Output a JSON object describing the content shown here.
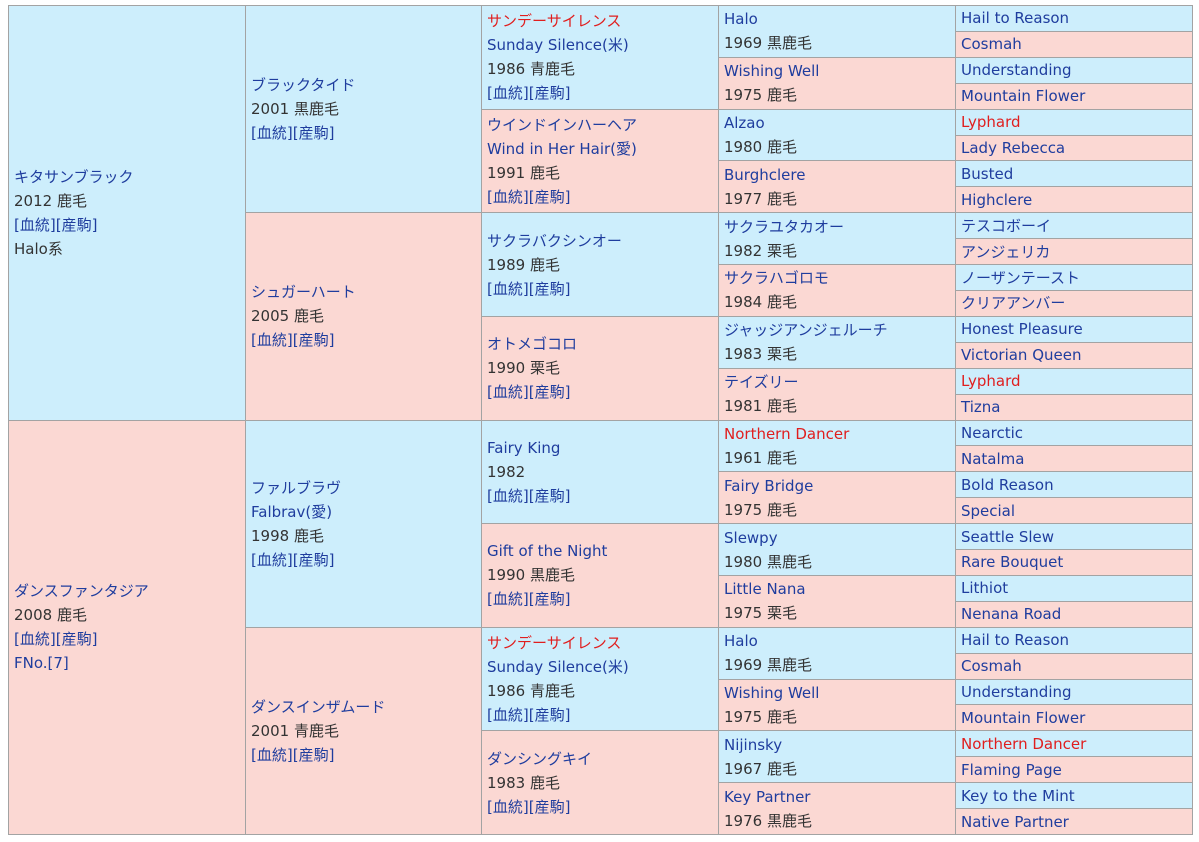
{
  "gen1": [
    {
      "name": "キタサンブラック",
      "name_red": false,
      "line2": "2012 鹿毛",
      "links": [
        "[血統]",
        "[産駒]"
      ],
      "line4": "Halo系",
      "color": "blue"
    },
    {
      "name": "ダンスファンタジア",
      "name_red": false,
      "line2": "2008 鹿毛",
      "links": [
        "[血統]",
        "[産駒]"
      ],
      "line4": "FNo.[7]",
      "color": "pink"
    }
  ],
  "gen2": [
    {
      "name": "ブラックタイド",
      "line2": "2001 黒鹿毛",
      "links": [
        "[血統]",
        "[産駒]"
      ],
      "color": "blue"
    },
    {
      "name": "シュガーハート",
      "line2": "2005 鹿毛",
      "links": [
        "[血統]",
        "[産駒]"
      ],
      "color": "pink"
    },
    {
      "name": "ファルブラヴ",
      "en": "Falbrav(愛)",
      "line2": "1998 鹿毛",
      "links": [
        "[血統]",
        "[産駒]"
      ],
      "color": "blue"
    },
    {
      "name": "ダンスインザムード",
      "line2": "2001 青鹿毛",
      "links": [
        "[血統]",
        "[産駒]"
      ],
      "color": "pink"
    }
  ],
  "gen3": [
    {
      "name": "サンデーサイレンス",
      "name_red": true,
      "en": "Sunday Silence(米)",
      "line2": "1986 青鹿毛",
      "links": [
        "[血統]",
        "[産駒]"
      ],
      "color": "blue"
    },
    {
      "name": "ウインドインハーヘア",
      "name_red": false,
      "en": "Wind in Her Hair(愛)",
      "line2": "1991 鹿毛",
      "links": [
        "[血統]",
        "[産駒]"
      ],
      "color": "pink"
    },
    {
      "name": "サクラバクシンオー",
      "name_red": false,
      "line2": "1989 鹿毛",
      "links": [
        "[血統]",
        "[産駒]"
      ],
      "color": "blue"
    },
    {
      "name": "オトメゴコロ",
      "name_red": false,
      "line2": "1990 栗毛",
      "links": [
        "[血統]",
        "[産駒]"
      ],
      "color": "pink"
    },
    {
      "name": "Fairy King",
      "name_red": false,
      "line2": "1982",
      "links": [
        "[血統]",
        "[産駒]"
      ],
      "color": "blue"
    },
    {
      "name": "Gift of the Night",
      "name_red": false,
      "line2": "1990 黒鹿毛",
      "links": [
        "[血統]",
        "[産駒]"
      ],
      "color": "pink"
    },
    {
      "name": "サンデーサイレンス",
      "name_red": true,
      "en": "Sunday Silence(米)",
      "line2": "1986 青鹿毛",
      "links": [
        "[血統]",
        "[産駒]"
      ],
      "color": "blue"
    },
    {
      "name": "ダンシングキイ",
      "name_red": false,
      "line2": "1983 鹿毛",
      "links": [
        "[血統]",
        "[産駒]"
      ],
      "color": "pink"
    }
  ],
  "gen4": [
    {
      "name": "Halo",
      "name_red": false,
      "line2": "1969 黒鹿毛",
      "color": "blue"
    },
    {
      "name": "Wishing Well",
      "name_red": false,
      "line2": "1975 鹿毛",
      "color": "pink"
    },
    {
      "name": "Alzao",
      "name_red": false,
      "line2": "1980 鹿毛",
      "color": "blue"
    },
    {
      "name": "Burghclere",
      "name_red": false,
      "line2": "1977 鹿毛",
      "color": "pink"
    },
    {
      "name": "サクラユタカオー",
      "name_red": false,
      "line2": "1982 栗毛",
      "color": "blue"
    },
    {
      "name": "サクラハゴロモ",
      "name_red": false,
      "line2": "1984 鹿毛",
      "color": "pink"
    },
    {
      "name": "ジャッジアンジェルーチ",
      "name_red": false,
      "line2": "1983 栗毛",
      "color": "blue"
    },
    {
      "name": "テイズリー",
      "name_red": false,
      "line2": "1981 鹿毛",
      "color": "pink"
    },
    {
      "name": "Northern Dancer",
      "name_red": true,
      "line2": "1961 鹿毛",
      "color": "blue"
    },
    {
      "name": "Fairy Bridge",
      "name_red": false,
      "line2": "1975 鹿毛",
      "color": "pink"
    },
    {
      "name": "Slewpy",
      "name_red": false,
      "line2": "1980 黒鹿毛",
      "color": "blue"
    },
    {
      "name": "Little Nana",
      "name_red": false,
      "line2": "1975 栗毛",
      "color": "pink"
    },
    {
      "name": "Halo",
      "name_red": false,
      "line2": "1969 黒鹿毛",
      "color": "blue"
    },
    {
      "name": "Wishing Well",
      "name_red": false,
      "line2": "1975 鹿毛",
      "color": "pink"
    },
    {
      "name": "Nijinsky",
      "name_red": false,
      "line2": "1967 鹿毛",
      "color": "blue"
    },
    {
      "name": "Key Partner",
      "name_red": false,
      "line2": "1976 黒鹿毛",
      "color": "pink"
    }
  ],
  "gen5": [
    {
      "name": "Hail to Reason",
      "red": false,
      "color": "blue"
    },
    {
      "name": "Cosmah",
      "red": false,
      "color": "pink"
    },
    {
      "name": "Understanding",
      "red": false,
      "color": "blue"
    },
    {
      "name": "Mountain Flower",
      "red": false,
      "color": "pink"
    },
    {
      "name": "Lyphard",
      "red": true,
      "color": "blue"
    },
    {
      "name": "Lady Rebecca",
      "red": false,
      "color": "pink"
    },
    {
      "name": "Busted",
      "red": false,
      "color": "blue"
    },
    {
      "name": "Highclere",
      "red": false,
      "color": "pink"
    },
    {
      "name": "テスコボーイ",
      "red": false,
      "color": "blue"
    },
    {
      "name": "アンジェリカ",
      "red": false,
      "color": "pink"
    },
    {
      "name": "ノーザンテースト",
      "red": false,
      "color": "blue"
    },
    {
      "name": "クリアアンバー",
      "red": false,
      "color": "pink"
    },
    {
      "name": "Honest Pleasure",
      "red": false,
      "color": "blue"
    },
    {
      "name": "Victorian Queen",
      "red": false,
      "color": "pink"
    },
    {
      "name": "Lyphard",
      "red": true,
      "color": "blue"
    },
    {
      "name": "Tizna",
      "red": false,
      "color": "pink"
    },
    {
      "name": "Nearctic",
      "red": false,
      "color": "blue"
    },
    {
      "name": "Natalma",
      "red": false,
      "color": "pink"
    },
    {
      "name": "Bold Reason",
      "red": false,
      "color": "blue"
    },
    {
      "name": "Special",
      "red": false,
      "color": "pink"
    },
    {
      "name": "Seattle Slew",
      "red": false,
      "color": "blue"
    },
    {
      "name": "Rare Bouquet",
      "red": false,
      "color": "pink"
    },
    {
      "name": "Lithiot",
      "red": false,
      "color": "blue"
    },
    {
      "name": "Nenana Road",
      "red": false,
      "color": "pink"
    },
    {
      "name": "Hail to Reason",
      "red": false,
      "color": "blue"
    },
    {
      "name": "Cosmah",
      "red": false,
      "color": "pink"
    },
    {
      "name": "Understanding",
      "red": false,
      "color": "blue"
    },
    {
      "name": "Mountain Flower",
      "red": false,
      "color": "pink"
    },
    {
      "name": "Northern Dancer",
      "red": true,
      "color": "blue"
    },
    {
      "name": "Flaming Page",
      "red": false,
      "color": "pink"
    },
    {
      "name": "Key to the Mint",
      "red": false,
      "color": "blue"
    },
    {
      "name": "Native Partner",
      "red": false,
      "color": "pink"
    }
  ]
}
